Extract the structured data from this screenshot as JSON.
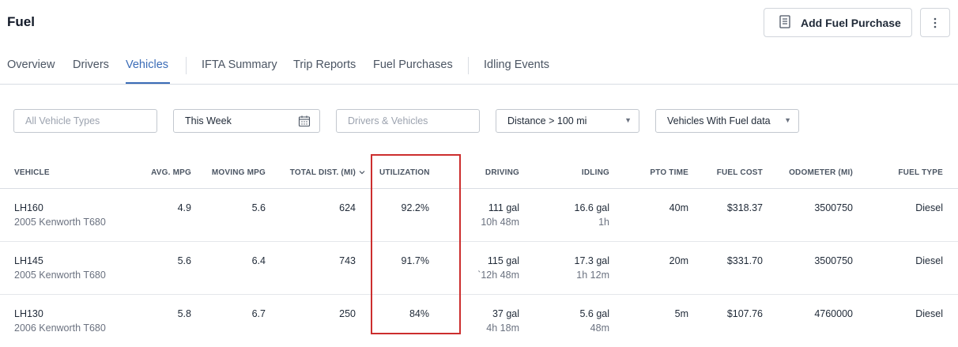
{
  "header": {
    "title": "Fuel",
    "add_button_label": "Add Fuel Purchase"
  },
  "tabs": [
    {
      "label": "Overview"
    },
    {
      "label": "Drivers"
    },
    {
      "label": "Vehicles",
      "active": true
    },
    {
      "label": "IFTA Summary"
    },
    {
      "label": "Trip Reports"
    },
    {
      "label": "Fuel Purchases"
    },
    {
      "label": "Idling Events"
    }
  ],
  "filters": {
    "vehicle_types_placeholder": "All Vehicle Types",
    "date_range": "This Week",
    "drivers_vehicles_placeholder": "Drivers & Vehicles",
    "distance": "Distance > 100 mi",
    "fuel_data": "Vehicles With Fuel data"
  },
  "table": {
    "columns": [
      "VEHICLE",
      "AVG. MPG",
      "MOVING MPG",
      "TOTAL DIST. (MI)",
      "UTILIZATION",
      "DRIVING",
      "IDLING",
      "PTO TIME",
      "FUEL COST",
      "ODOMETER (MI)",
      "FUEL TYPE"
    ],
    "rows": [
      {
        "vehicle": "LH160",
        "model": "2005 Kenworth T680",
        "avg_mpg": "4.9",
        "moving_mpg": "5.6",
        "total_dist": "624",
        "utilization": "92.2%",
        "driving_gal": "111 gal",
        "driving_time": "10h 48m",
        "idling_gal": "16.6 gal",
        "idling_time": "1h",
        "pto_time": "40m",
        "fuel_cost": "$318.37",
        "odometer": "3500750",
        "fuel_type": "Diesel"
      },
      {
        "vehicle": "LH145",
        "model": "2005 Kenworth T680",
        "avg_mpg": "5.6",
        "moving_mpg": "6.4",
        "total_dist": "743",
        "utilization": "91.7%",
        "driving_gal": "115 gal",
        "driving_time": "`12h 48m",
        "idling_gal": "17.3 gal",
        "idling_time": "1h 12m",
        "pto_time": "20m",
        "fuel_cost": "$331.70",
        "odometer": "3500750",
        "fuel_type": "Diesel"
      },
      {
        "vehicle": "LH130",
        "model": "2006 Kenworth T680",
        "avg_mpg": "5.8",
        "moving_mpg": "6.7",
        "total_dist": "250",
        "utilization": "84%",
        "driving_gal": "37 gal",
        "driving_time": "4h 18m",
        "idling_gal": "5.6 gal",
        "idling_time": "48m",
        "pto_time": "5m",
        "fuel_cost": "$107.76",
        "odometer": "4760000",
        "fuel_type": "Diesel"
      }
    ]
  },
  "colors": {
    "accent": "#3b6cb7",
    "highlight": "#cc2e2e"
  }
}
